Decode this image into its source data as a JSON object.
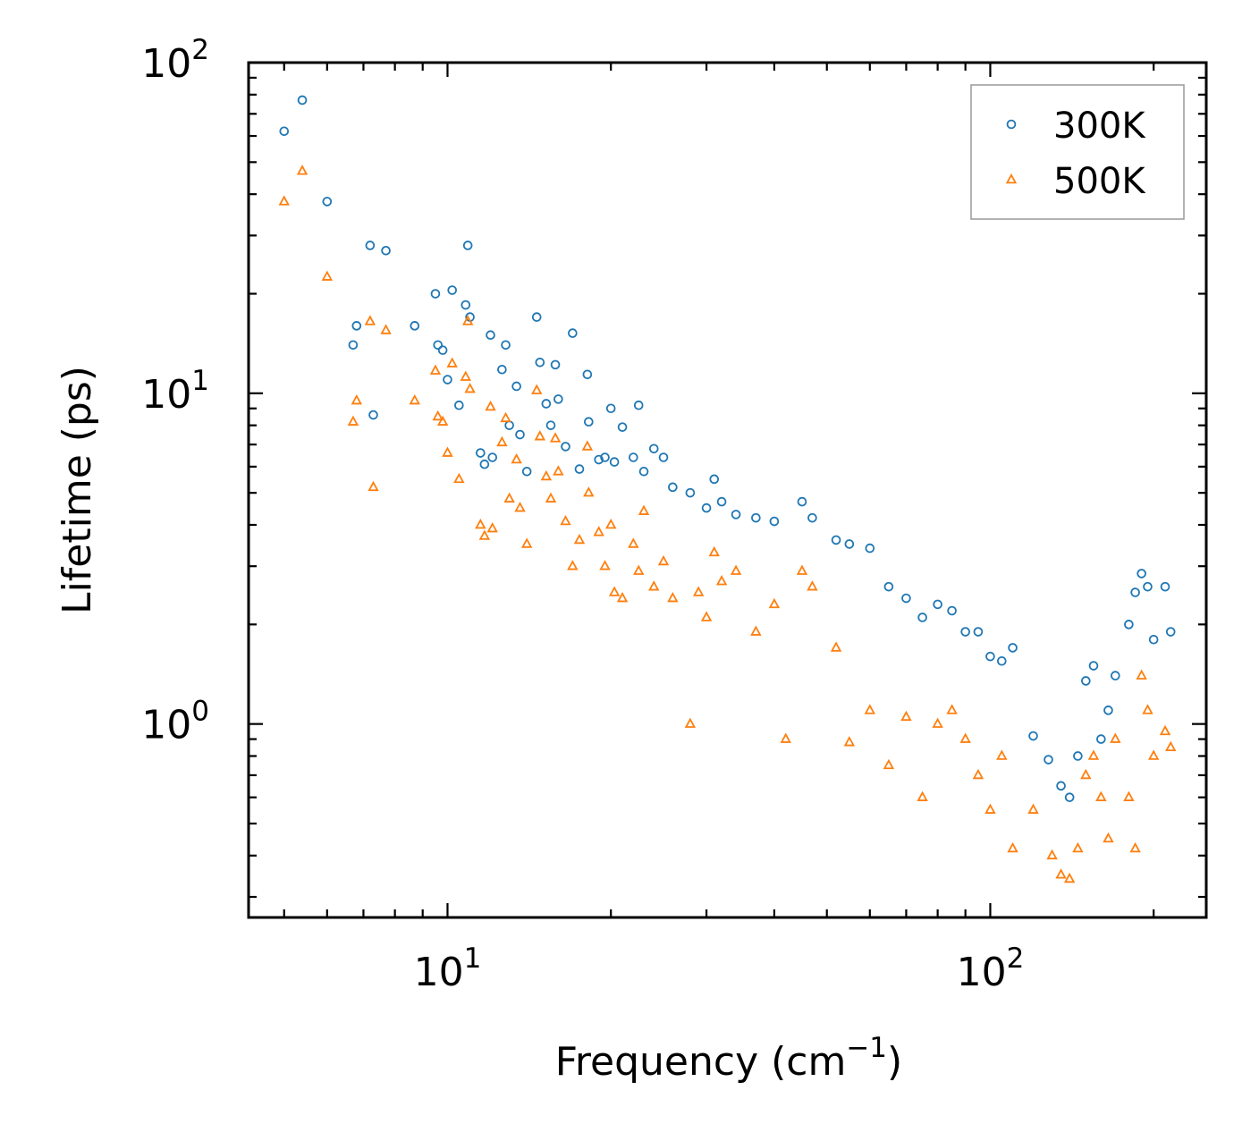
{
  "chart_data": {
    "type": "scatter",
    "title": "",
    "xlabel": "Frequency (cm",
    "xlabel_sup": "−1",
    "xlabel_end": ")",
    "ylabel": "Lifetime (ps)",
    "x_scale": "log",
    "y_scale": "log",
    "xlim": [
      4.3,
      250
    ],
    "ylim": [
      0.26,
      100
    ],
    "x_ticks": [
      {
        "value": 10,
        "base": "10",
        "exp": "1"
      },
      {
        "value": 100,
        "base": "10",
        "exp": "2"
      }
    ],
    "y_ticks": [
      {
        "value": 1,
        "base": "10",
        "exp": "0"
      },
      {
        "value": 10,
        "base": "10",
        "exp": "1"
      },
      {
        "value": 100,
        "base": "10",
        "exp": "2"
      }
    ],
    "legend_position": "top-right",
    "series": [
      {
        "name": "300K",
        "marker": "circle",
        "color": "#1f77b4",
        "points": [
          [
            5.0,
            62
          ],
          [
            5.4,
            77
          ],
          [
            6.0,
            38
          ],
          [
            6.7,
            14
          ],
          [
            6.8,
            16
          ],
          [
            7.2,
            28
          ],
          [
            7.3,
            8.6
          ],
          [
            7.7,
            27
          ],
          [
            8.7,
            16
          ],
          [
            9.5,
            20
          ],
          [
            9.6,
            14
          ],
          [
            9.8,
            13.5
          ],
          [
            10.0,
            11
          ],
          [
            10.2,
            20.5
          ],
          [
            10.5,
            9.2
          ],
          [
            10.8,
            18.5
          ],
          [
            10.9,
            28
          ],
          [
            11.0,
            17
          ],
          [
            11.5,
            6.6
          ],
          [
            11.7,
            6.1
          ],
          [
            12.0,
            15
          ],
          [
            12.1,
            6.4
          ],
          [
            12.6,
            11.8
          ],
          [
            12.8,
            14
          ],
          [
            13.0,
            8.0
          ],
          [
            13.4,
            10.5
          ],
          [
            13.6,
            7.5
          ],
          [
            14.0,
            5.8
          ],
          [
            14.6,
            17
          ],
          [
            14.8,
            12.4
          ],
          [
            15.2,
            9.3
          ],
          [
            15.5,
            8.0
          ],
          [
            15.8,
            12.2
          ],
          [
            16.0,
            9.6
          ],
          [
            16.5,
            6.9
          ],
          [
            17.0,
            15.2
          ],
          [
            17.5,
            5.9
          ],
          [
            18.1,
            11.4
          ],
          [
            18.2,
            8.2
          ],
          [
            19.0,
            6.3
          ],
          [
            19.5,
            6.4
          ],
          [
            20.0,
            9.0
          ],
          [
            20.3,
            6.2
          ],
          [
            21.0,
            7.9
          ],
          [
            22.0,
            6.4
          ],
          [
            22.5,
            9.2
          ],
          [
            23.0,
            5.8
          ],
          [
            24.0,
            6.8
          ],
          [
            25.0,
            6.4
          ],
          [
            26.0,
            5.2
          ],
          [
            28.0,
            5.0
          ],
          [
            30.0,
            4.5
          ],
          [
            31.0,
            5.5
          ],
          [
            32.0,
            4.7
          ],
          [
            34.0,
            4.3
          ],
          [
            37.0,
            4.2
          ],
          [
            40.0,
            4.1
          ],
          [
            45.0,
            4.7
          ],
          [
            47.0,
            4.2
          ],
          [
            52.0,
            3.6
          ],
          [
            55.0,
            3.5
          ],
          [
            60.0,
            3.4
          ],
          [
            65.0,
            2.6
          ],
          [
            70.0,
            2.4
          ],
          [
            75.0,
            2.1
          ],
          [
            80.0,
            2.3
          ],
          [
            85.0,
            2.2
          ],
          [
            90.0,
            1.9
          ],
          [
            95.0,
            1.9
          ],
          [
            100.0,
            1.6
          ],
          [
            105.0,
            1.55
          ],
          [
            110.0,
            1.7
          ],
          [
            120.0,
            0.92
          ],
          [
            128.0,
            0.78
          ],
          [
            135.0,
            0.65
          ],
          [
            140.0,
            0.6
          ],
          [
            145.0,
            0.8
          ],
          [
            150.0,
            1.35
          ],
          [
            155.0,
            1.5
          ],
          [
            160.0,
            0.9
          ],
          [
            165.0,
            1.1
          ],
          [
            170.0,
            1.4
          ],
          [
            180.0,
            2.0
          ],
          [
            185.0,
            2.5
          ],
          [
            190.0,
            2.85
          ],
          [
            195.0,
            2.6
          ],
          [
            200.0,
            1.8
          ],
          [
            210.0,
            2.6
          ],
          [
            215.0,
            1.9
          ]
        ]
      },
      {
        "name": "500K",
        "marker": "triangle",
        "color": "#ff7f0e",
        "points": [
          [
            5.0,
            38
          ],
          [
            5.4,
            47
          ],
          [
            6.0,
            22.5
          ],
          [
            6.7,
            8.2
          ],
          [
            6.8,
            9.5
          ],
          [
            7.2,
            16.5
          ],
          [
            7.3,
            5.2
          ],
          [
            7.7,
            15.5
          ],
          [
            8.7,
            9.5
          ],
          [
            9.5,
            11.7
          ],
          [
            9.6,
            8.5
          ],
          [
            9.8,
            8.2
          ],
          [
            10.0,
            6.6
          ],
          [
            10.2,
            12.3
          ],
          [
            10.5,
            5.5
          ],
          [
            10.8,
            11.2
          ],
          [
            10.9,
            16.5
          ],
          [
            11.0,
            10.3
          ],
          [
            11.5,
            4.0
          ],
          [
            11.7,
            3.7
          ],
          [
            12.0,
            9.1
          ],
          [
            12.1,
            3.9
          ],
          [
            12.6,
            7.1
          ],
          [
            12.8,
            8.4
          ],
          [
            13.0,
            4.8
          ],
          [
            13.4,
            6.3
          ],
          [
            13.6,
            4.5
          ],
          [
            14.0,
            3.5
          ],
          [
            14.6,
            10.2
          ],
          [
            14.8,
            7.4
          ],
          [
            15.2,
            5.6
          ],
          [
            15.5,
            4.8
          ],
          [
            15.8,
            7.3
          ],
          [
            16.0,
            5.8
          ],
          [
            16.5,
            4.1
          ],
          [
            17.0,
            3.0
          ],
          [
            17.5,
            3.6
          ],
          [
            18.1,
            6.9
          ],
          [
            18.2,
            5.0
          ],
          [
            19.0,
            3.8
          ],
          [
            19.5,
            3.0
          ],
          [
            20.0,
            4.0
          ],
          [
            20.3,
            2.5
          ],
          [
            21.0,
            2.4
          ],
          [
            22.0,
            3.5
          ],
          [
            22.5,
            2.9
          ],
          [
            23.0,
            4.4
          ],
          [
            24.0,
            2.6
          ],
          [
            25.0,
            3.1
          ],
          [
            26.0,
            2.4
          ],
          [
            28.0,
            1.0
          ],
          [
            29.0,
            2.5
          ],
          [
            30.0,
            2.1
          ],
          [
            31.0,
            3.3
          ],
          [
            32.0,
            2.7
          ],
          [
            34.0,
            2.9
          ],
          [
            37.0,
            1.9
          ],
          [
            40.0,
            2.3
          ],
          [
            42.0,
            0.9
          ],
          [
            45.0,
            2.9
          ],
          [
            47.0,
            2.6
          ],
          [
            52.0,
            1.7
          ],
          [
            55.0,
            0.88
          ],
          [
            60.0,
            1.1
          ],
          [
            65.0,
            0.75
          ],
          [
            70.0,
            1.05
          ],
          [
            75.0,
            0.6
          ],
          [
            80.0,
            1.0
          ],
          [
            85.0,
            1.1
          ],
          [
            90.0,
            0.9
          ],
          [
            95.0,
            0.7
          ],
          [
            100.0,
            0.55
          ],
          [
            105.0,
            0.8
          ],
          [
            110.0,
            0.42
          ],
          [
            120.0,
            0.55
          ],
          [
            130.0,
            0.4
          ],
          [
            135.0,
            0.35
          ],
          [
            140.0,
            0.34
          ],
          [
            145.0,
            0.42
          ],
          [
            150.0,
            0.7
          ],
          [
            155.0,
            0.8
          ],
          [
            160.0,
            0.6
          ],
          [
            165.0,
            0.45
          ],
          [
            170.0,
            0.9
          ],
          [
            180.0,
            0.6
          ],
          [
            185.0,
            0.42
          ],
          [
            190.0,
            1.4
          ],
          [
            195.0,
            1.1
          ],
          [
            200.0,
            0.8
          ],
          [
            210.0,
            0.95
          ],
          [
            215.0,
            0.85
          ]
        ]
      }
    ]
  }
}
